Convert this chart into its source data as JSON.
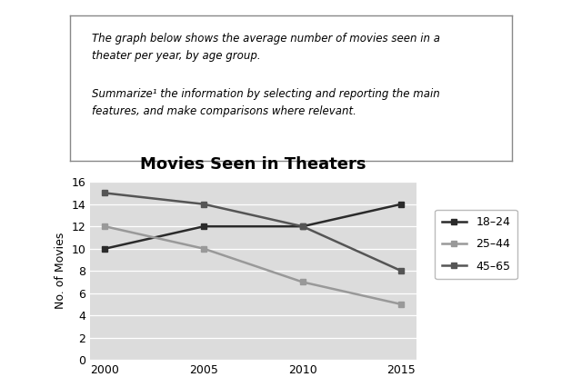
{
  "title": "Movies Seen in Theaters",
  "ylabel": "No. of Movies",
  "years": [
    2000,
    2005,
    2010,
    2015
  ],
  "series": {
    "18-24": {
      "values": [
        10,
        12,
        12,
        14
      ],
      "color": "#2b2b2b",
      "marker": "s"
    },
    "25-44": {
      "values": [
        12,
        10,
        7,
        5
      ],
      "color": "#999999",
      "marker": "s"
    },
    "45-65": {
      "values": [
        15,
        14,
        12,
        8
      ],
      "color": "#555555",
      "marker": "s"
    }
  },
  "ylim": [
    0,
    16
  ],
  "yticks": [
    0,
    2,
    4,
    6,
    8,
    10,
    12,
    14,
    16
  ],
  "xticks": [
    2000,
    2005,
    2010,
    2015
  ],
  "legend_labels": [
    "18–24",
    "25–44",
    "45–65"
  ],
  "text_line1": "The graph below shows the average number of movies seen in a",
  "text_line2": "theater per year, by age group.",
  "text_line3": "Summarize¹ the information by selecting and reporting the main",
  "text_line4": "features, and make comparisons where relevant.",
  "fig_bg_color": "#ffffff",
  "plot_bg_color": "#dcdcdc",
  "grid_color": "#ffffff",
  "title_fontsize": 13,
  "label_fontsize": 9,
  "tick_fontsize": 9,
  "legend_fontsize": 9,
  "line_width": 1.8,
  "marker_size": 5
}
